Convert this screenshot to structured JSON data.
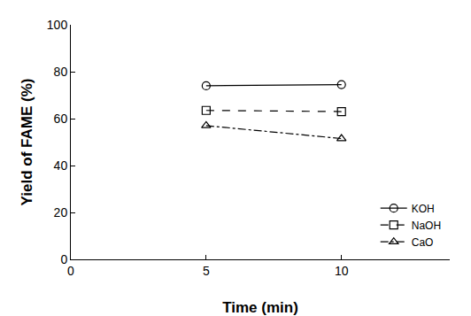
{
  "chart_data": {
    "type": "line",
    "x_label": "Time (min)",
    "y_label": "Yield of FAME (%)",
    "x": [
      5,
      10
    ],
    "series": [
      {
        "name": "KOH",
        "color": "#000000",
        "marker": "circle-open",
        "line_style": "solid",
        "values": [
          74,
          74.5
        ]
      },
      {
        "name": "NaOH",
        "color": "#000000",
        "marker": "square-open",
        "line_style": "dash",
        "values": [
          63.5,
          63
        ]
      },
      {
        "name": "CaO",
        "color": "#000000",
        "marker": "triangle-up-open",
        "line_style": "dashdot",
        "values": [
          57,
          51.5
        ]
      }
    ],
    "xlim": [
      0,
      14
    ],
    "xticks": [
      0,
      5,
      10
    ],
    "ylim": [
      0,
      100
    ],
    "yticks": [
      0,
      20,
      40,
      60,
      80,
      100
    ],
    "grid": false,
    "legend": "lower right"
  }
}
